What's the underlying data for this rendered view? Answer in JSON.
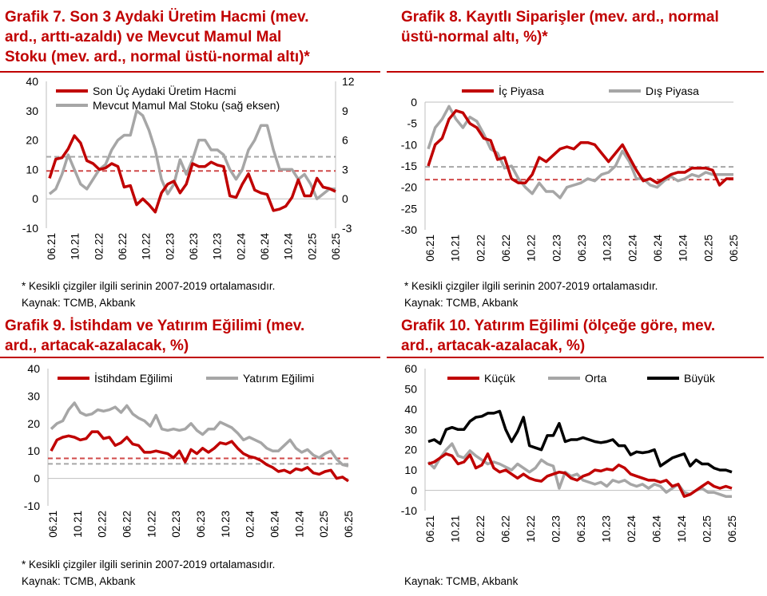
{
  "charts": [
    {
      "title": "Grafik 7. Son 3 Aydaki Üretim Hacmi (mev. ard., arttı-azaldı) ve Mevcut Mamul Mal Stoku (mev. ard., normal üstü-normal altı)*",
      "title_lines": [
        "Grafik 7. Son 3 Aydaki Üretim Hacmi (mev.",
        "ard., arttı-azaldı) ve Mevcut Mamul Mal",
        "Stoku (mev. ard., normal üstü-normal altı)*"
      ],
      "note": "* Kesikli çizgiler ilgili serinin 2007-2019 ortalamasıdır.",
      "source": "Kaynak: TCMB, Akbank"
    },
    {
      "title": "Grafik 8. Kayıtlı Siparişler (mev. ard., normal üstü-normal altı, %)*",
      "title_lines": [
        "Grafik 8. Kayıtlı Siparişler (mev. ard., normal",
        "üstü-normal altı, %)*"
      ],
      "note": "* Kesikli çizgiler ilgili serinin 2007-2019 ortalamasıdır.",
      "source": "Kaynak: TCMB, Akbank"
    },
    {
      "title": "Grafik 9. İstihdam ve Yatırım Eğilimi (mev. ard., artacak-azalacak, %)",
      "title_lines": [
        "Grafik 9. İstihdam ve Yatırım Eğilimi (mev.",
        "ard., artacak-azalacak, %)"
      ],
      "note": "* Kesikli çizgiler ilgili serinin 2007-2019 ortalamasıdır.",
      "source": "Kaynak: TCMB, Akbank"
    },
    {
      "title": "Grafik 10. Yatırım Eğilimi (ölçeğe göre, mev. ard., artacak-azalacak, %)",
      "title_lines": [
        "Grafik 10. Yatırım Eğilimi (ölçeğe göre, mev.",
        "ard., artacak-azalacak, %)"
      ],
      "note": "",
      "source": "Kaynak: TCMB, Akbank"
    }
  ],
  "colors": {
    "red": "#c00000",
    "gray": "#a6a6a6",
    "black": "#000000",
    "dash_red": "#d04a4a",
    "dash_gray": "#a6a6a6"
  },
  "chart_data": [
    {
      "type": "line",
      "x_tick_labels": [
        "06.21",
        "10.21",
        "02.22",
        "06.22",
        "10.22",
        "02.23",
        "06.23",
        "10.23",
        "02.24",
        "06.24",
        "10.24",
        "02.25",
        "06.25"
      ],
      "ylim": [
        -10,
        40
      ],
      "y_ticks": [
        -10,
        0,
        10,
        20,
        30,
        40
      ],
      "y2lim": [
        -3,
        12
      ],
      "y2_ticks": [
        -3,
        0,
        3,
        6,
        9,
        12
      ],
      "legend": "top-left",
      "series": [
        {
          "name": "Son Üç Aydaki Üretim Hacmi",
          "axis": "left",
          "color": "#c00000",
          "values": [
            7,
            13.5,
            14,
            17,
            21.5,
            19,
            13,
            12,
            10,
            10.5,
            12,
            11,
            4,
            4.5,
            -2,
            0,
            -2,
            -4.5,
            2,
            5,
            6,
            2,
            5,
            12,
            11,
            11,
            12.5,
            11.5,
            11,
            1,
            0.5,
            5,
            8.5,
            3,
            2,
            1.5,
            -4,
            -3.5,
            -2.5,
            0.5,
            6.5,
            1,
            1,
            7,
            4,
            3.5,
            2.5
          ]
        },
        {
          "name": "Mevcut Mamul Mal Stoku (sağ eksen)",
          "axis": "right",
          "color": "#a6a6a6",
          "values": [
            0.5,
            1,
            2.5,
            4.5,
            3,
            1.5,
            1,
            2,
            3,
            3.5,
            5,
            6,
            6.5,
            6.5,
            9,
            8.5,
            7,
            5,
            2,
            0.5,
            1.5,
            4,
            2.5,
            4,
            6,
            6,
            5,
            5,
            4.5,
            3,
            2,
            3,
            5,
            6,
            7.5,
            7.5,
            5,
            3,
            3,
            3,
            2,
            2.5,
            1.5,
            0,
            0.5,
            1,
            1
          ]
        }
      ],
      "reference_lines": [
        {
          "series": "Son Üç Aydaki Üretim Hacmi",
          "axis": "left",
          "value": 9.5
        },
        {
          "series": "Mevcut Mamul Mal Stoku (sağ eksen)",
          "axis": "right",
          "value": 4.3
        }
      ]
    },
    {
      "type": "line",
      "x_tick_labels": [
        "06.21",
        "10.21",
        "02.22",
        "06.22",
        "10.22",
        "02.23",
        "06.23",
        "10.23",
        "02.24",
        "06.24",
        "10.24",
        "02.25",
        "06.25"
      ],
      "ylim": [
        -30,
        0
      ],
      "y_ticks": [
        -30,
        -25,
        -20,
        -15,
        -10,
        -5,
        0
      ],
      "legend": "top",
      "series": [
        {
          "name": "İç Piyasa",
          "color": "#c00000",
          "values": [
            -15,
            -10,
            -8.5,
            -4,
            -2,
            -2.5,
            -5,
            -6,
            -8.5,
            -9,
            -13.5,
            -13,
            -18,
            -19,
            -19,
            -17,
            -13,
            -14,
            -12.5,
            -11,
            -10.5,
            -11,
            -9.5,
            -9.5,
            -10,
            -12,
            -14,
            -12,
            -10,
            -13,
            -16,
            -18.5,
            -18,
            -19,
            -18,
            -17,
            -16.5,
            -16.5,
            -15.5,
            -15.5,
            -15.5,
            -16,
            -19.5,
            -18,
            -18
          ]
        },
        {
          "name": "Dış Piyasa",
          "color": "#a6a6a6",
          "values": [
            -11,
            -6,
            -4,
            -1,
            -4,
            -6,
            -3.5,
            -4.5,
            -7.5,
            -11,
            -12,
            -15.5,
            -15,
            -18,
            -20,
            -21.5,
            -19,
            -21,
            -21,
            -22.5,
            -20,
            -19.5,
            -19,
            -18,
            -18.5,
            -17,
            -16.5,
            -15,
            -11.5,
            -14,
            -18,
            -18,
            -19.5,
            -20,
            -18.5,
            -17.5,
            -18.5,
            -18,
            -17,
            -17.5,
            -16.5,
            -17,
            -17,
            -17,
            -17
          ]
        }
      ],
      "reference_lines": [
        {
          "series": "İç Piyasa",
          "value": -18.2
        },
        {
          "series": "Dış Piyasa",
          "value": -15.2
        }
      ]
    },
    {
      "type": "line",
      "x_tick_labels": [
        "06.21",
        "10.21",
        "02.22",
        "06.22",
        "10.22",
        "02.23",
        "06.23",
        "10.23",
        "02.24",
        "06.24",
        "10.24",
        "02.25",
        "06.25"
      ],
      "ylim": [
        -10,
        40
      ],
      "y_ticks": [
        -10,
        0,
        10,
        20,
        30,
        40
      ],
      "legend": "top",
      "series": [
        {
          "name": "İstihdam Eğilimi",
          "color": "#c00000",
          "values": [
            10,
            14,
            15,
            15.5,
            15,
            14,
            14.5,
            17,
            17,
            14.5,
            15,
            12,
            13,
            15,
            12.5,
            12,
            9.5,
            9.5,
            10,
            9.5,
            9,
            7.5,
            10,
            6,
            10.5,
            9,
            11,
            9.5,
            11,
            13,
            12.5,
            13.5,
            11,
            9,
            8,
            7.5,
            6.5,
            5,
            4,
            2.5,
            3,
            2,
            3.5,
            3,
            4,
            2,
            1.5,
            2.5,
            3,
            0,
            0.5,
            -1
          ]
        },
        {
          "name": "Yatırım Eğilimi",
          "color": "#a6a6a6",
          "values": [
            18,
            20,
            21,
            25,
            27.5,
            24,
            23,
            23.5,
            25,
            24.5,
            25,
            26,
            24,
            26.5,
            23.5,
            22,
            21,
            19,
            23,
            18,
            17.5,
            18,
            17.5,
            18,
            20,
            17.5,
            16,
            18,
            18,
            20.5,
            19.5,
            18.5,
            16.5,
            14,
            15,
            14,
            13,
            11,
            10,
            10,
            12,
            14,
            11,
            9.5,
            10.5,
            8.5,
            7.5,
            9,
            10,
            7,
            5,
            4.5
          ]
        }
      ],
      "reference_lines": [
        {
          "series": "İstihdam Eğilimi",
          "value": 7.3
        },
        {
          "series": "Yatırım Eğilimi",
          "value": 5.3
        }
      ]
    },
    {
      "type": "line",
      "x_tick_labels": [
        "06.21",
        "10.21",
        "02.22",
        "06.22",
        "10.22",
        "02.23",
        "06.23",
        "10.23",
        "02.24",
        "06.24",
        "10.24",
        "02.25",
        "06.25"
      ],
      "ylim": [
        -10,
        60
      ],
      "y_ticks": [
        -10,
        0,
        10,
        20,
        30,
        40,
        50,
        60
      ],
      "legend": "top",
      "series": [
        {
          "name": "Küçük",
          "color": "#c00000",
          "values": [
            13,
            14,
            16,
            18,
            17,
            13,
            14,
            17.5,
            11,
            12.5,
            18,
            11,
            9,
            10,
            8,
            6,
            8,
            6,
            5,
            4.5,
            7,
            8,
            9,
            8.5,
            6,
            5,
            7,
            8,
            10,
            9.5,
            10.5,
            10,
            12.5,
            11,
            8,
            7,
            6,
            5,
            5,
            4,
            5,
            2,
            3,
            -3,
            -2,
            0,
            2,
            4,
            2,
            1,
            2,
            1
          ]
        },
        {
          "name": "Orta",
          "color": "#a6a6a6",
          "values": [
            14,
            11,
            16,
            20,
            23,
            17,
            16,
            19.5,
            17,
            15,
            13,
            14,
            13,
            11.5,
            10,
            13,
            11,
            9,
            11,
            15,
            13,
            12,
            1,
            9,
            7,
            8,
            5,
            4,
            3,
            4,
            2,
            5,
            4,
            5,
            3,
            2,
            3,
            1,
            3,
            2,
            -1,
            1,
            3,
            -1,
            -2,
            0,
            1,
            -1,
            -1,
            -2,
            -3,
            -3
          ]
        },
        {
          "name": "Büyük",
          "color": "#000000",
          "values": [
            24,
            25,
            23,
            30,
            31,
            30,
            30,
            34,
            36,
            36.5,
            38,
            38,
            39,
            30,
            24,
            29,
            36,
            22,
            21,
            20,
            27,
            27,
            33,
            24,
            25,
            25,
            26,
            25,
            24,
            23.5,
            24,
            25,
            22,
            22,
            17.5,
            19,
            18.5,
            19,
            20,
            12,
            14,
            16,
            17,
            18,
            12,
            15,
            13,
            13,
            11,
            10,
            10,
            9
          ]
        }
      ]
    }
  ]
}
